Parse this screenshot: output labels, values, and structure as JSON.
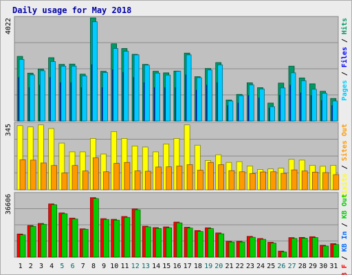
{
  "chart_data": {
    "type": "bar",
    "title": "Daily usage for May 2018",
    "categories": [
      "1",
      "2",
      "3",
      "4",
      "5",
      "6",
      "7",
      "8",
      "9",
      "10",
      "11",
      "12",
      "13",
      "14",
      "15",
      "16",
      "17",
      "18",
      "19",
      "20",
      "21",
      "22",
      "23",
      "24",
      "25",
      "26",
      "27",
      "28",
      "29",
      "30",
      "31"
    ],
    "weekend_days": [
      "5",
      "6",
      "12",
      "13",
      "19",
      "20",
      "26",
      "27"
    ],
    "colors": {
      "pages": "#00ccff",
      "files": "#0000ff",
      "hits": "#009966",
      "visits": "#ffff00",
      "sites": "#ff9900",
      "kb_in": "#00cc00",
      "kb_out": "#ff0000",
      "weekday_label": "#000000",
      "weekend_label": "#006666"
    },
    "panels": [
      {
        "name": "hits-files-pages",
        "ymax": 4022,
        "tick_label": "4022",
        "legend": [
          {
            "text": "Pages",
            "color": "#00ccff"
          },
          {
            "text": " / ",
            "color": "#000000"
          },
          {
            "text": "Files",
            "color": "#0000ff"
          },
          {
            "text": " / ",
            "color": "#000000"
          },
          {
            "text": "Hits",
            "color": "#009966"
          }
        ],
        "series": [
          {
            "name": "Hits",
            "color": "#009966",
            "values": [
              2520,
              1870,
              2030,
              2470,
              2210,
              2220,
              1830,
              4022,
              1940,
              3010,
              2830,
              2600,
              2210,
              1940,
              1880,
              1950,
              2650,
              1730,
              2050,
              2280,
              820,
              1040,
              1490,
              1300,
              700,
              1480,
              2140,
              1680,
              1450,
              1160,
              880
            ]
          },
          {
            "name": "Files",
            "color": "#0000ff",
            "values": [
              1700,
              1300,
              1400,
              1700,
              1500,
              1500,
              1300,
              2200,
              1300,
              2000,
              1900,
              1700,
              1500,
              1300,
              1300,
              1300,
              1800,
              1200,
              1400,
              1500,
              600,
              700,
              1000,
              900,
              500,
              1000,
              1400,
              1100,
              1000,
              800,
              600
            ]
          },
          {
            "name": "Pages",
            "color": "#00ccff",
            "values": [
              2400,
              1800,
              1960,
              2320,
              2140,
              2140,
              1760,
              3870,
              1890,
              2830,
              2720,
              2580,
              2180,
              1870,
              1790,
              1940,
              2580,
              1690,
              1990,
              2190,
              780,
              990,
              1410,
              1250,
              560,
              1290,
              1880,
              1570,
              1240,
              1080,
              780
            ]
          }
        ]
      },
      {
        "name": "visits-sites",
        "ymax": 345,
        "tick_label": "345",
        "legend": [
          {
            "text": "Visits",
            "color": "#ffff00"
          },
          {
            "text": " / ",
            "color": "#000000"
          },
          {
            "text": "Sites",
            "color": "#ff9900"
          },
          {
            "text": " Out",
            "color": "#ff9900"
          }
        ],
        "series": [
          {
            "name": "Visits",
            "color": "#ffff00",
            "values": [
              335,
              329,
              339,
              320,
              244,
              198,
              198,
              268,
              187,
              304,
              268,
              229,
              223,
              198,
              239,
              268,
              339,
              233,
              153,
              183,
              143,
              147,
              124,
              106,
              109,
              113,
              159,
              155,
              128,
              123,
              128
            ]
          },
          {
            "name": "Sites",
            "color": "#ff9900",
            "values": [
              157,
              155,
              140,
              127,
              88,
              127,
              98,
              167,
              94,
              138,
              143,
              99,
              97,
              119,
              120,
              124,
              131,
              102,
              143,
              131,
              100,
              94,
              85,
              93,
              94,
              86,
              104,
              98,
              92,
              90,
              79
            ]
          }
        ]
      },
      {
        "name": "kb-in-out",
        "ymax": 36606,
        "tick_label": "36606",
        "legend": [
          {
            "text": "KB F",
            "color": "#ff0000"
          },
          {
            "text": " / ",
            "color": "#000000"
          },
          {
            "text": "KB In",
            "color": "#0066ff"
          },
          {
            "text": " / ",
            "color": "#000000"
          },
          {
            "text": "KB Out",
            "color": "#00cc00"
          }
        ],
        "series": [
          {
            "name": "KB F",
            "color": "#ff0000",
            "values": [
              13400,
              18300,
              19500,
              30800,
              25600,
              22600,
              16400,
              34400,
              22300,
              21900,
              23500,
              27900,
              17900,
              17100,
              17500,
              20300,
              17300,
              15400,
              17000,
              14000,
              9200,
              9200,
              12000,
              10800,
              8600,
              3500,
              11300,
              11400,
              11800,
              6900,
              7800
            ]
          },
          {
            "name": "KB Out",
            "color": "#00cc00",
            "values": [
              12900,
              17800,
              19000,
              30300,
              25100,
              22100,
              16100,
              33900,
              21800,
              21400,
              23000,
              27400,
              17500,
              16600,
              17000,
              19800,
              16800,
              14900,
              16500,
              13500,
              8700,
              8700,
              11500,
              10300,
              8100,
              3000,
              10800,
              10900,
              11300,
              6400,
              7300
            ]
          }
        ]
      }
    ]
  }
}
